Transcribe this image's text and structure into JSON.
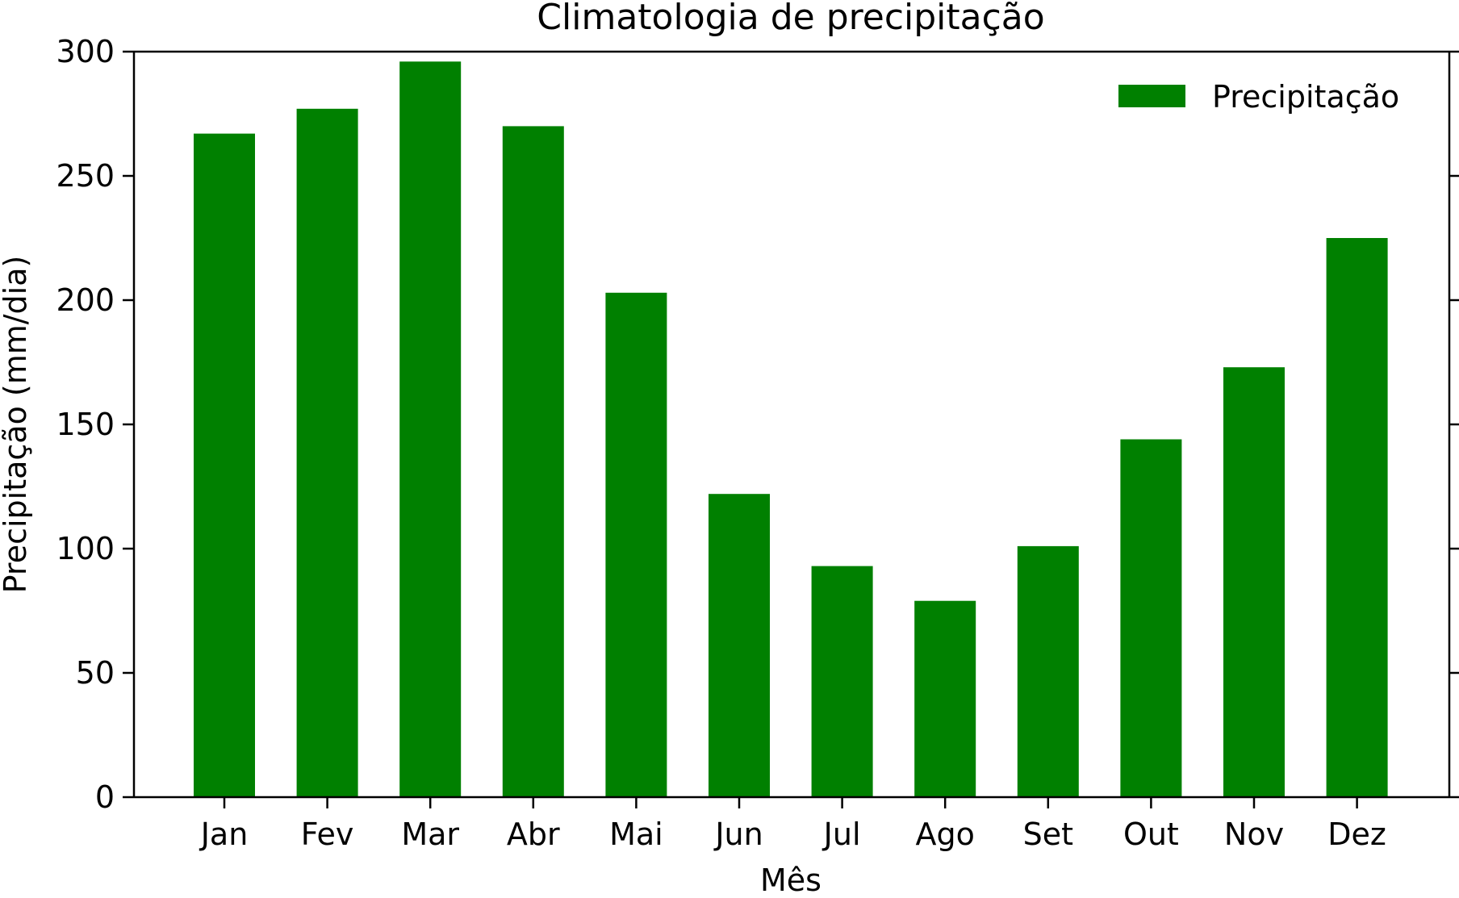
{
  "chart_data": {
    "type": "bar",
    "title": "Climatologia de precipitação",
    "xlabel": "Mês",
    "ylabel": "Precipitação (mm/dia)",
    "categories": [
      "Jan",
      "Fev",
      "Mar",
      "Abr",
      "Mai",
      "Jun",
      "Jul",
      "Ago",
      "Set",
      "Out",
      "Nov",
      "Dez"
    ],
    "series": [
      {
        "name": "Precipitação",
        "values": [
          267,
          277,
          296,
          270,
          203,
          122,
          93,
          79,
          101,
          144,
          173,
          225
        ],
        "color": "#008000"
      }
    ],
    "ylim": [
      0,
      300
    ],
    "yticks": [
      0,
      50,
      100,
      150,
      200,
      250,
      300
    ],
    "grid": false,
    "legend_position": "top-right",
    "colors": {
      "bar": "#008000",
      "axis": "#000000",
      "background": "#ffffff"
    }
  }
}
